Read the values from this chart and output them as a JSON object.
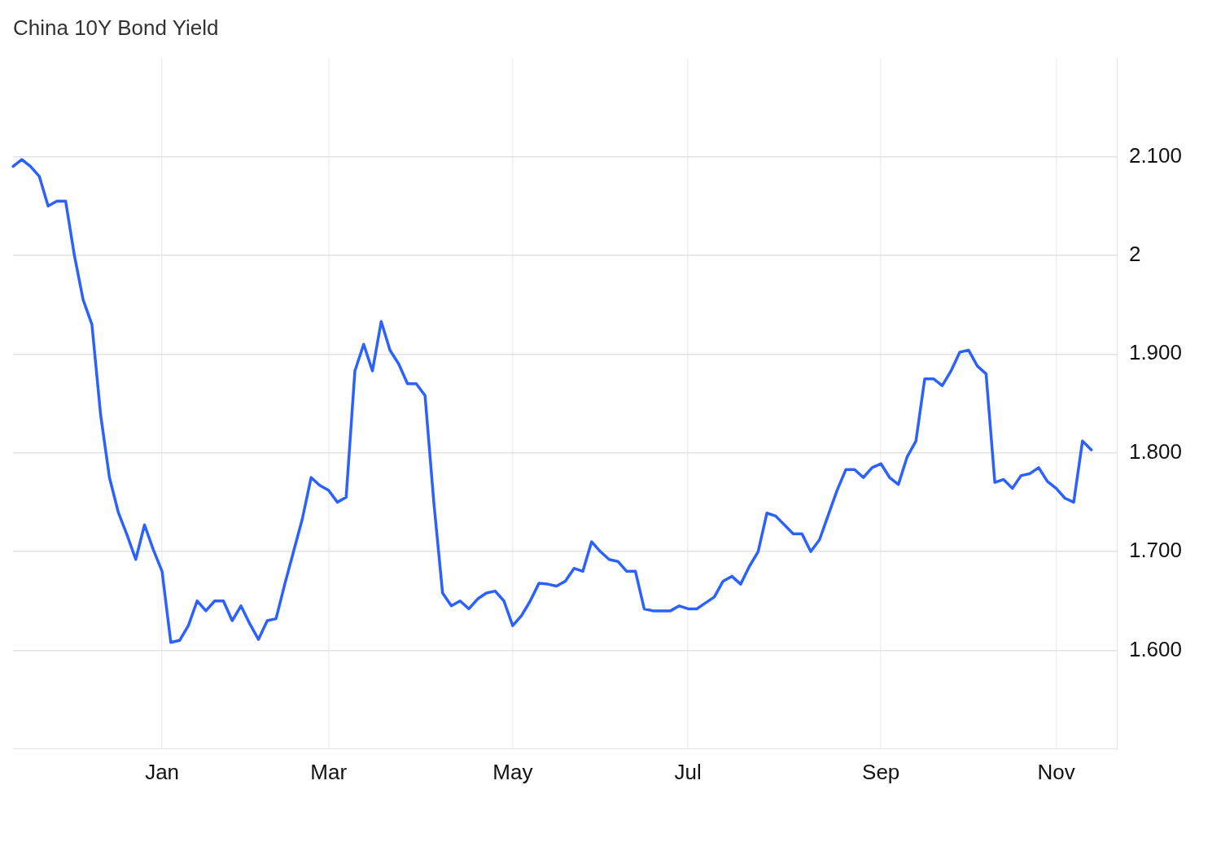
{
  "chart_data": {
    "type": "line",
    "title": "China 10Y Bond Yield",
    "categories": [
      null,
      null,
      null,
      null,
      null,
      null,
      null,
      null,
      null,
      null,
      null,
      null,
      null,
      null,
      null,
      null,
      null,
      "Jan",
      null,
      null,
      null,
      null,
      null,
      null,
      null,
      null,
      null,
      null,
      null,
      null,
      null,
      null,
      null,
      null,
      null,
      null,
      "Mar",
      null,
      null,
      null,
      null,
      null,
      null,
      null,
      null,
      null,
      null,
      null,
      null,
      null,
      null,
      null,
      null,
      null,
      null,
      null,
      null,
      "May",
      null,
      null,
      null,
      null,
      null,
      null,
      null,
      null,
      null,
      null,
      null,
      null,
      null,
      null,
      null,
      null,
      null,
      null,
      null,
      "Jul",
      null,
      null,
      null,
      null,
      null,
      null,
      null,
      null,
      null,
      null,
      null,
      null,
      null,
      null,
      null,
      null,
      null,
      null,
      null,
      null,
      null,
      "Sep",
      null,
      null,
      null,
      null,
      null,
      null,
      null,
      null,
      null,
      null,
      null,
      null,
      null,
      null,
      null,
      null,
      null,
      null,
      null,
      "Nov",
      null,
      null,
      null,
      null,
      null,
      null,
      null
    ],
    "series": [
      {
        "color": "#2b62ff",
        "values": [
          2.09,
          2.097,
          2.09,
          2.08,
          2.05,
          2.055,
          2.055,
          2.0,
          1.955,
          1.93,
          1.838,
          1.775,
          1.74,
          1.717,
          1.692,
          1.727,
          1.702,
          1.68,
          1.608,
          1.61,
          1.625,
          1.65,
          1.64,
          1.65,
          1.65,
          1.63,
          1.645,
          1.627,
          1.611,
          1.63,
          1.632,
          1.667,
          1.7,
          1.733,
          1.775,
          1.767,
          1.762,
          1.75,
          1.755,
          1.883,
          1.91,
          1.883,
          1.933,
          1.904,
          1.89,
          1.87,
          1.87,
          1.858,
          1.75,
          1.658,
          1.645,
          1.65,
          1.642,
          1.652,
          1.658,
          1.66,
          1.65,
          1.625,
          1.635,
          1.65,
          1.668,
          1.667,
          1.665,
          1.67,
          1.683,
          1.68,
          1.71,
          1.7,
          1.692,
          1.69,
          1.68,
          1.68,
          1.642,
          1.64,
          1.64,
          1.64,
          1.645,
          1.642,
          1.642,
          1.648,
          1.654,
          1.67,
          1.675,
          1.667,
          1.685,
          1.7,
          1.739,
          1.736,
          1.727,
          1.718,
          1.718,
          1.7,
          1.712,
          1.737,
          1.762,
          1.783,
          1.783,
          1.775,
          1.785,
          1.789,
          1.775,
          1.768,
          1.796,
          1.812,
          1.875,
          1.875,
          1.868,
          1.883,
          1.902,
          1.904,
          1.888,
          1.88,
          1.77,
          1.773,
          1.764,
          1.777,
          1.779,
          1.785,
          1.771,
          1.764,
          1.754,
          1.75,
          1.812,
          1.803,
          null,
          null,
          null
        ]
      }
    ],
    "ylim": [
      1.5,
      2.2
    ],
    "yticks": [
      {
        "value": 1.6,
        "label": "1.600"
      },
      {
        "value": 1.7,
        "label": "1.700"
      },
      {
        "value": 1.8,
        "label": "1.800"
      },
      {
        "value": 1.9,
        "label": "1.900"
      },
      {
        "value": 2,
        "label": "2"
      },
      {
        "value": 2.1,
        "label": "2.100"
      }
    ],
    "grid": true,
    "legend": false,
    "marker": "none",
    "line_style": "solid"
  }
}
